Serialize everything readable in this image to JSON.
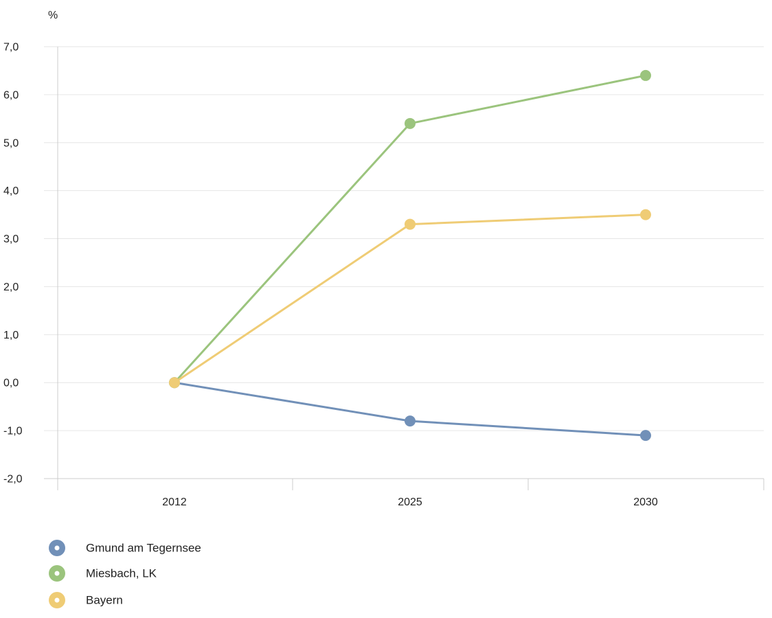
{
  "chart_data": {
    "type": "line",
    "y_unit_label": "%",
    "categories": [
      "2012",
      "2025",
      "2030"
    ],
    "y_ticks": [
      "7,0",
      "6,0",
      "5,0",
      "4,0",
      "3,0",
      "2,0",
      "1,0",
      "0,0",
      "-1,0",
      "-2,0"
    ],
    "ylim": [
      -2,
      7
    ],
    "grid": true,
    "legend_position": "bottom-left",
    "series": [
      {
        "name": "Gmund am Tegernsee",
        "color": "#7190b8",
        "values": [
          0.0,
          -0.8,
          -1.1
        ]
      },
      {
        "name": "Miesbach, LK",
        "color": "#9bc47d",
        "values": [
          0.0,
          5.4,
          6.4
        ]
      },
      {
        "name": "Bayern",
        "color": "#efcc75",
        "values": [
          0.0,
          3.3,
          3.5
        ]
      }
    ]
  }
}
